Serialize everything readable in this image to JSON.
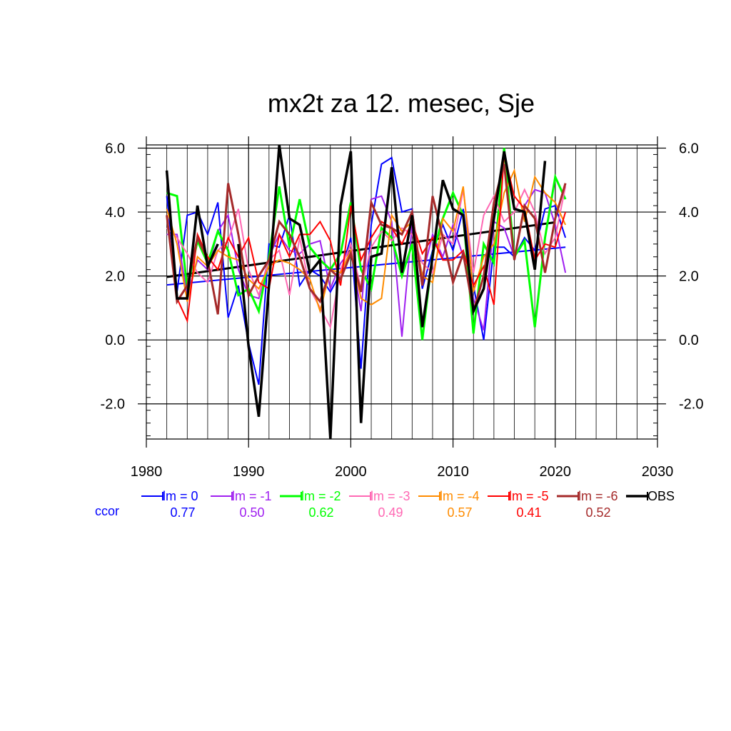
{
  "chart_data": {
    "type": "line",
    "title": "mx2t za 12. mesec, Sje",
    "xlabel": "",
    "ylabel": "",
    "xlim": [
      1980,
      2030
    ],
    "ylim": [
      -3.1,
      6.1
    ],
    "xticks": [
      1980,
      1990,
      2000,
      2010,
      2020,
      2030
    ],
    "xtick_labels": [
      "1980",
      "1990",
      "2000",
      "2010",
      "2020",
      "2030"
    ],
    "yticks": [
      -2,
      0,
      2,
      4,
      6
    ],
    "ytick_labels": [
      "-2.0",
      "0.0",
      "2.0",
      "4.0",
      "6.0"
    ],
    "grid": true,
    "legend_position": "bottom",
    "ccor_label": "ccor",
    "series": [
      {
        "name": "lm = 0",
        "color": "#0000ff",
        "ccor": "0.77",
        "width": 2,
        "x": [
          1982,
          1983,
          1984,
          1985,
          1986,
          1987,
          1988,
          1989,
          1990,
          1991,
          1992,
          1993,
          1994,
          1995,
          1996,
          1997,
          1998,
          1999,
          2000,
          2001,
          2002,
          2003,
          2004,
          2005,
          2006,
          2007,
          2008,
          2009,
          2010,
          2011,
          2012,
          2013,
          2014,
          2015,
          2016,
          2017,
          2018,
          2019,
          2020,
          2021
        ],
        "y": [
          4.5,
          1.5,
          3.9,
          4.0,
          3.3,
          4.3,
          0.7,
          1.7,
          -0.1,
          -1.4,
          3.0,
          2.9,
          3.9,
          1.7,
          2.2,
          2.0,
          1.5,
          2.1,
          3.2,
          -0.9,
          3.6,
          5.5,
          5.7,
          4.0,
          4.1,
          1.6,
          2.8,
          3.6,
          2.8,
          4.1,
          1.7,
          0.0,
          2.9,
          2.9,
          2.6,
          3.2,
          2.8,
          4.1,
          4.2,
          3.2
        ]
      },
      {
        "name": "lm = -1",
        "color": "#a020f0",
        "ccor": "0.50",
        "width": 2,
        "x": [
          1982,
          1983,
          1984,
          1985,
          1986,
          1987,
          1988,
          1989,
          1990,
          1991,
          1992,
          1993,
          1994,
          1995,
          1996,
          1997,
          1998,
          1999,
          2000,
          2001,
          2002,
          2003,
          2004,
          2005,
          2006,
          2007,
          2008,
          2009,
          2010,
          2011,
          2012,
          2013,
          2014,
          2015,
          2016,
          2017,
          2018,
          2019,
          2020,
          2021
        ],
        "y": [
          3.3,
          3.3,
          1.4,
          2.5,
          2.2,
          3.4,
          3.9,
          2.2,
          1.4,
          1.3,
          2.6,
          3.3,
          2.8,
          2.7,
          3.0,
          3.1,
          1.6,
          2.4,
          2.8,
          0.9,
          4.4,
          4.5,
          3.7,
          0.1,
          3.6,
          2.0,
          3.3,
          2.6,
          3.6,
          2.6,
          1.3,
          0.3,
          3.7,
          3.5,
          2.6,
          4.2,
          4.7,
          4.6,
          3.6,
          2.1
        ]
      },
      {
        "name": "lm = -2",
        "color": "#00ff00",
        "ccor": "0.62",
        "width": 3,
        "x": [
          1982,
          1983,
          1984,
          1985,
          1986,
          1987,
          1988,
          1989,
          1990,
          1991,
          1992,
          1993,
          1994,
          1995,
          1996,
          1997,
          1998,
          1999,
          2000,
          2001,
          2002,
          2003,
          2004,
          2005,
          2006,
          2007,
          2008,
          2009,
          2010,
          2011,
          2012,
          2013,
          2014,
          2015,
          2016,
          2017,
          2018,
          2019,
          2020,
          2021
        ],
        "y": [
          4.6,
          4.5,
          1.6,
          3.1,
          2.4,
          3.4,
          2.8,
          1.4,
          1.6,
          0.9,
          2.6,
          4.8,
          2.9,
          4.4,
          2.9,
          2.5,
          2.2,
          2.7,
          4.3,
          2.2,
          1.6,
          3.5,
          3.2,
          2.0,
          3.0,
          0.0,
          2.7,
          3.8,
          4.6,
          3.9,
          0.2,
          3.0,
          2.4,
          6.0,
          2.6,
          3.1,
          0.4,
          3.2,
          5.1,
          4.4
        ]
      },
      {
        "name": "lm = -3",
        "color": "#ff69b4",
        "ccor": "0.49",
        "width": 2,
        "x": [
          1982,
          1983,
          1984,
          1985,
          1986,
          1987,
          1988,
          1989,
          1990,
          1991,
          1992,
          1993,
          1994,
          1995,
          1996,
          1997,
          1998,
          1999,
          2000,
          2001,
          2002,
          2003,
          2004,
          2005,
          2006,
          2007,
          2008,
          2009,
          2010,
          2011,
          2012,
          2013,
          2014,
          2015,
          2016,
          2017,
          2018,
          2019,
          2020,
          2021
        ],
        "y": [
          3.5,
          3.2,
          2.7,
          2.1,
          1.8,
          2.8,
          3.1,
          4.1,
          2.2,
          1.4,
          2.5,
          2.8,
          1.4,
          3.2,
          1.6,
          1.0,
          0.4,
          2.2,
          3.0,
          1.6,
          2.9,
          3.4,
          3.1,
          3.5,
          3.3,
          2.4,
          2.1,
          3.3,
          3.0,
          4.7,
          2.1,
          3.9,
          4.5,
          3.7,
          4.0,
          4.7,
          4.0,
          2.7,
          3.2,
          4.8
        ]
      },
      {
        "name": "lm = -4",
        "color": "#ff8c00",
        "ccor": "0.57",
        "width": 2,
        "x": [
          1982,
          1983,
          1984,
          1985,
          1986,
          1987,
          1988,
          1989,
          1990,
          1991,
          1992,
          1993,
          1994,
          1995,
          1996,
          1997,
          1998,
          1999,
          2000,
          2001,
          2002,
          2003,
          2004,
          2005,
          2006,
          2007,
          2008,
          2009,
          2010,
          2011,
          2012,
          2013,
          2014,
          2015,
          2016,
          2017,
          2018,
          2019,
          2020,
          2021
        ],
        "y": [
          4.1,
          3.0,
          1.2,
          2.6,
          2.3,
          2.8,
          2.6,
          2.5,
          1.9,
          1.6,
          2.3,
          2.5,
          2.4,
          2.2,
          1.9,
          0.9,
          2.2,
          2.1,
          2.8,
          1.3,
          1.1,
          1.3,
          3.9,
          3.4,
          3.7,
          2.0,
          1.8,
          3.8,
          3.4,
          4.8,
          1.5,
          2.6,
          3.0,
          4.6,
          5.3,
          3.7,
          5.1,
          4.6,
          4.3,
          3.6
        ]
      },
      {
        "name": "lm = -5",
        "color": "#ff0000",
        "ccor": "0.41",
        "width": 2,
        "x": [
          1982,
          1983,
          1984,
          1985,
          1986,
          1987,
          1988,
          1989,
          1990,
          1991,
          1992,
          1993,
          1994,
          1995,
          1996,
          1997,
          1998,
          1999,
          2000,
          2001,
          2002,
          2003,
          2004,
          2005,
          2006,
          2007,
          2008,
          2009,
          2010,
          2011,
          2012,
          2013,
          2014,
          2015,
          2016,
          2017,
          2018,
          2019,
          2020,
          2021
        ],
        "y": [
          3.9,
          1.3,
          0.6,
          3.3,
          2.6,
          2.2,
          3.2,
          2.6,
          3.2,
          1.8,
          1.6,
          3.3,
          2.6,
          3.3,
          3.3,
          3.7,
          3.1,
          1.7,
          4.2,
          2.5,
          3.2,
          3.7,
          3.5,
          3.0,
          3.7,
          2.7,
          3.2,
          2.5,
          2.5,
          2.8,
          1.7,
          2.3,
          1.1,
          5.8,
          4.5,
          4.1,
          2.5,
          3.0,
          2.9,
          4.0
        ]
      },
      {
        "name": "lm = -6",
        "color": "#a52a2a",
        "ccor": "0.52",
        "width": 3,
        "x": [
          1982,
          1983,
          1984,
          1985,
          1986,
          1987,
          1988,
          1989,
          1990,
          1991,
          1992,
          1993,
          1994,
          1995,
          1996,
          1997,
          1998,
          1999,
          2000,
          2001,
          2002,
          2003,
          2004,
          2005,
          2006,
          2007,
          2008,
          2009,
          2010,
          2011,
          2012,
          2013,
          2014,
          2015,
          2016,
          2017,
          2018,
          2019,
          2020,
          2021
        ],
        "y": [
          3.9,
          1.2,
          1.7,
          3.2,
          2.5,
          0.8,
          4.9,
          3.3,
          1.4,
          2.0,
          2.5,
          3.7,
          3.3,
          2.6,
          1.6,
          1.2,
          2.2,
          1.9,
          2.7,
          1.5,
          4.3,
          3.6,
          3.5,
          3.3,
          4.0,
          1.7,
          4.5,
          3.2,
          1.8,
          2.7,
          0.9,
          2.0,
          4.3,
          5.5,
          2.5,
          4.2,
          3.8,
          2.1,
          3.8,
          4.9
        ]
      },
      {
        "name": "OBS",
        "color": "#000000",
        "ccor": "",
        "width": 3.5,
        "x": [
          1982,
          1983,
          1984,
          1985,
          1986,
          1987,
          null,
          1989,
          1990,
          1991,
          1992,
          1993,
          1994,
          1995,
          1996,
          1997,
          1998,
          1999,
          2000,
          2001,
          2002,
          2003,
          2004,
          2005,
          2006,
          2007,
          2008,
          2009,
          2010,
          2011,
          2012,
          2013,
          2014,
          2015,
          2016,
          2017,
          2018,
          2019
        ],
        "y": [
          5.3,
          1.3,
          1.3,
          4.2,
          2.3,
          3.0,
          null,
          3.0,
          -0.2,
          -2.4,
          1.7,
          6.1,
          3.8,
          3.6,
          2.1,
          2.5,
          -3.1,
          4.2,
          5.9,
          -2.6,
          2.6,
          2.7,
          5.4,
          2.1,
          3.9,
          0.4,
          2.6,
          5.0,
          4.1,
          3.9,
          0.9,
          1.6,
          3.8,
          5.9,
          4.1,
          4.0,
          2.2,
          5.6
        ]
      }
    ],
    "trend_lines": [
      {
        "name": "lm = 0 trend",
        "color": "#0000ff",
        "width": 2,
        "x": [
          1982,
          2021
        ],
        "y": [
          1.72,
          2.9
        ]
      },
      {
        "name": "OBS trend",
        "color": "#000000",
        "width": 3,
        "x": [
          1982,
          2020
        ],
        "y": [
          1.97,
          3.68
        ]
      }
    ]
  }
}
